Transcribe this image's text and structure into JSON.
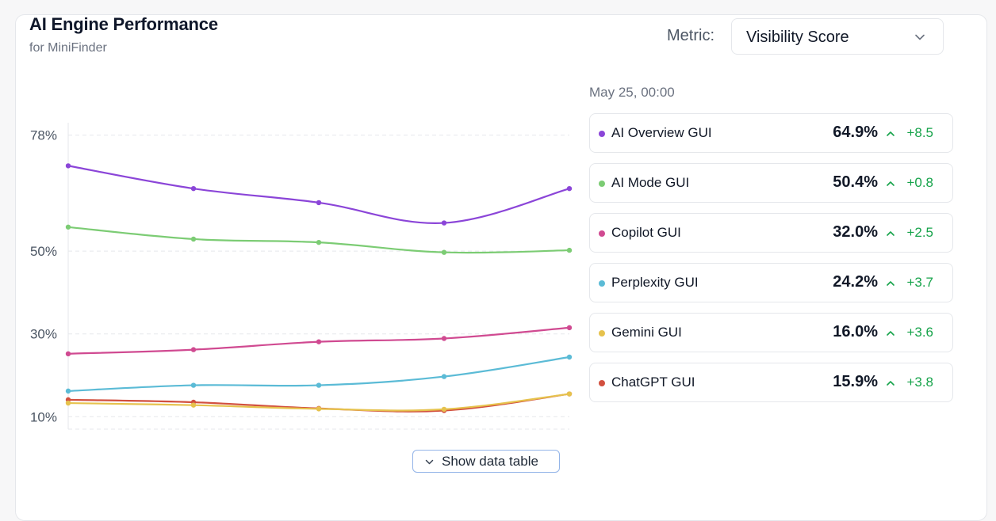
{
  "header": {
    "title": "AI Engine Performance",
    "subtitle": "for MiniFinder"
  },
  "metric": {
    "label": "Metric:",
    "selected": "Visibility Score"
  },
  "tooltip": {
    "timestamp": "May 25, 00:00"
  },
  "show_table": {
    "label": "Show data table"
  },
  "icons": {
    "dropdown": "chevron-down-icon",
    "trend": "arrow-up-icon",
    "series_marker": "dot-icon"
  },
  "chart_data": {
    "type": "line",
    "title": "AI Engine Performance",
    "subtitle": "for MiniFinder",
    "xlabel": "",
    "ylabel": "",
    "y_ticks": [
      "78%",
      "50%",
      "30%",
      "10%"
    ],
    "y_tick_values": [
      78,
      50,
      30,
      10
    ],
    "ylim": [
      7,
      81
    ],
    "grid": true,
    "x": [
      1,
      2,
      3,
      4,
      5
    ],
    "series": [
      {
        "name": "AI Overview GUI",
        "color": "#8b45d8",
        "values": [
          70.6,
          65.1,
          61.7,
          56.8,
          65.1
        ],
        "current": "64.9%",
        "delta": "+8.5"
      },
      {
        "name": "AI Mode GUI",
        "color": "#7ccc74",
        "values": [
          55.8,
          52.9,
          52.1,
          49.7,
          50.2
        ],
        "current": "50.4%",
        "delta": "+0.8"
      },
      {
        "name": "Copilot GUI",
        "color": "#d04a91",
        "values": [
          25.2,
          26.2,
          28.1,
          28.9,
          31.5
        ],
        "current": "32.0%",
        "delta": "+2.5"
      },
      {
        "name": "Perplexity GUI",
        "color": "#5bbbd6",
        "values": [
          16.2,
          17.6,
          17.6,
          19.7,
          24.4
        ],
        "current": "24.2%",
        "delta": "+3.7"
      },
      {
        "name": "Gemini GUI",
        "color": "#e6c24d",
        "values": [
          13.3,
          12.8,
          11.9,
          11.8,
          15.5
        ],
        "current": "16.0%",
        "delta": "+3.6"
      },
      {
        "name": "ChatGPT GUI",
        "color": "#d2503f",
        "values": [
          14.1,
          13.5,
          12.0,
          11.5,
          15.5
        ],
        "current": "15.9%",
        "delta": "+3.8"
      }
    ]
  }
}
